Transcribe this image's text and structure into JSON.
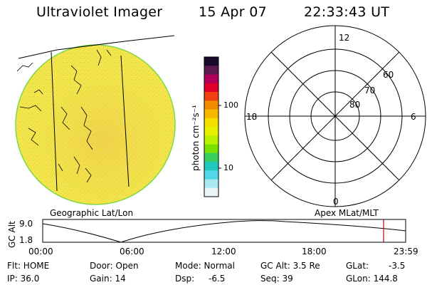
{
  "header": {
    "title": "Ultraviolet Imager",
    "date": "15 Apr 07",
    "time": "22:33:43 UT"
  },
  "colorbar": {
    "unit_label": "photon cm⁻²s⁻¹",
    "ticks": [
      "100",
      "10"
    ],
    "colors": [
      "#1a0a2e",
      "#5a1a50",
      "#b0005a",
      "#e0002a",
      "#f04010",
      "#f08a00",
      "#f7b800",
      "#f3e000",
      "#e8f000",
      "#b8f000",
      "#7ae000",
      "#3ad060",
      "#20c8c0",
      "#50d8e8",
      "#a8e8f0",
      "#e8f4f6"
    ]
  },
  "image_panel": {
    "label": "Geographic Lat/Lon",
    "disk_fill": "#f3e64a",
    "disk_edge": "#7fd84a"
  },
  "polar_panel": {
    "label": "Apex MLat/MLT",
    "mlt_labels": {
      "top": "12",
      "left": "18",
      "right": "6",
      "bottom": "0"
    },
    "lat_labels": [
      "60",
      "70",
      "80"
    ]
  },
  "altitude_plot": {
    "ylabel": "GC Alt",
    "yticks": [
      "9.0",
      "1.8"
    ],
    "xticks": [
      "00:00",
      "06:00",
      "12:00",
      "18:00",
      "23:59"
    ],
    "marker_color": "#c00000"
  },
  "status": {
    "flt": "Flt: HOME",
    "ip": "IP: 36.0",
    "door": "Door: Open",
    "gain": "Gain: 14",
    "mode": "Mode: Normal",
    "dsp_label": "Dsp:",
    "dsp_value": "-6.5",
    "gc_alt": "GC Alt: 3.5 Re",
    "seq": "Seq: 39",
    "glat_label": "GLat:",
    "glat_value": "-3.5",
    "glon": "GLon: 144.8"
  }
}
